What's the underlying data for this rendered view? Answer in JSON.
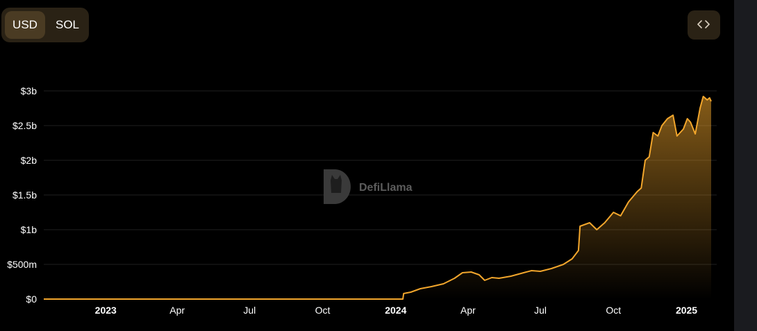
{
  "toggle": {
    "usd_label": "USD",
    "sol_label": "SOL",
    "selected": "USD"
  },
  "embed": {
    "icon": "code-brackets-icon"
  },
  "watermark": {
    "text": "DefiLlama",
    "icon": "llama-logo-icon"
  },
  "colors": {
    "accent": "#f2a62c",
    "background": "#000000",
    "toggle_bg": "#2a2215",
    "toggle_active": "#4a3b23"
  },
  "chart_data": {
    "type": "area",
    "title": "",
    "xlabel": "",
    "ylabel": "",
    "ylim": [
      0,
      3000000000
    ],
    "grid": true,
    "y_ticks": [
      {
        "value": 0,
        "label": "$0"
      },
      {
        "value": 500000000,
        "label": "$500m"
      },
      {
        "value": 1000000000,
        "label": "$1b"
      },
      {
        "value": 1500000000,
        "label": "$1.5b"
      },
      {
        "value": 2000000000,
        "label": "$2b"
      },
      {
        "value": 2500000000,
        "label": "$2.5b"
      },
      {
        "value": 3000000000,
        "label": "$3b"
      }
    ],
    "x_ticks": [
      {
        "date": "2023-01-01",
        "label": "2023",
        "bold": true
      },
      {
        "date": "2023-04-01",
        "label": "Apr",
        "bold": false
      },
      {
        "date": "2023-07-01",
        "label": "Jul",
        "bold": false
      },
      {
        "date": "2023-10-01",
        "label": "Oct",
        "bold": false
      },
      {
        "date": "2024-01-01",
        "label": "2024",
        "bold": true
      },
      {
        "date": "2024-04-01",
        "label": "Apr",
        "bold": false
      },
      {
        "date": "2024-07-01",
        "label": "Jul",
        "bold": false
      },
      {
        "date": "2024-10-01",
        "label": "Oct",
        "bold": false
      },
      {
        "date": "2025-01-01",
        "label": "2025",
        "bold": true
      }
    ],
    "xlim": [
      "2022-10-15",
      "2025-02-08"
    ],
    "series": [
      {
        "color": "#f2a62c",
        "points": [
          [
            "2022-10-15",
            0
          ],
          [
            "2024-01-10",
            0
          ],
          [
            "2024-01-11",
            80000000
          ],
          [
            "2024-01-20",
            100000000
          ],
          [
            "2024-02-01",
            150000000
          ],
          [
            "2024-02-15",
            180000000
          ],
          [
            "2024-03-01",
            220000000
          ],
          [
            "2024-03-15",
            300000000
          ],
          [
            "2024-03-25",
            380000000
          ],
          [
            "2024-04-05",
            390000000
          ],
          [
            "2024-04-15",
            350000000
          ],
          [
            "2024-04-22",
            270000000
          ],
          [
            "2024-05-01",
            310000000
          ],
          [
            "2024-05-10",
            300000000
          ],
          [
            "2024-05-25",
            330000000
          ],
          [
            "2024-06-10",
            380000000
          ],
          [
            "2024-06-20",
            410000000
          ],
          [
            "2024-07-01",
            400000000
          ],
          [
            "2024-07-15",
            440000000
          ],
          [
            "2024-07-30",
            500000000
          ],
          [
            "2024-08-10",
            580000000
          ],
          [
            "2024-08-18",
            700000000
          ],
          [
            "2024-08-20",
            1050000000
          ],
          [
            "2024-09-01",
            1100000000
          ],
          [
            "2024-09-10",
            1000000000
          ],
          [
            "2024-09-20",
            1100000000
          ],
          [
            "2024-10-01",
            1250000000
          ],
          [
            "2024-10-10",
            1200000000
          ],
          [
            "2024-10-20",
            1400000000
          ],
          [
            "2024-10-31",
            1550000000
          ],
          [
            "2024-11-05",
            1600000000
          ],
          [
            "2024-11-10",
            2000000000
          ],
          [
            "2024-11-15",
            2050000000
          ],
          [
            "2024-11-20",
            2400000000
          ],
          [
            "2024-11-26",
            2350000000
          ],
          [
            "2024-12-01",
            2500000000
          ],
          [
            "2024-12-08",
            2600000000
          ],
          [
            "2024-12-15",
            2650000000
          ],
          [
            "2024-12-20",
            2350000000
          ],
          [
            "2024-12-28",
            2450000000
          ],
          [
            "2025-01-02",
            2600000000
          ],
          [
            "2025-01-06",
            2550000000
          ],
          [
            "2025-01-12",
            2380000000
          ],
          [
            "2025-01-18",
            2750000000
          ],
          [
            "2025-01-22",
            2920000000
          ],
          [
            "2025-01-27",
            2870000000
          ],
          [
            "2025-01-30",
            2900000000
          ],
          [
            "2025-02-01",
            2850000000
          ]
        ]
      }
    ]
  }
}
